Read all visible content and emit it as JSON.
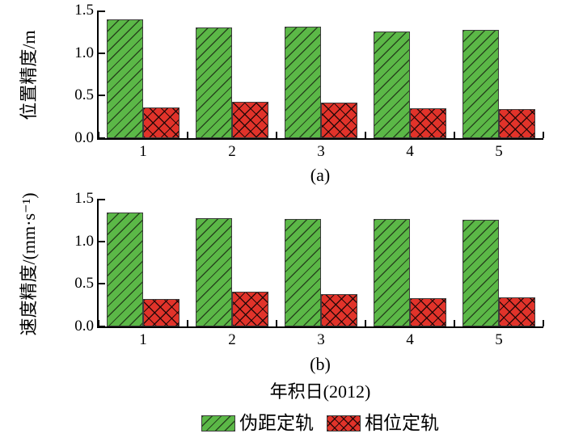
{
  "figure": {
    "x_axis_title": "年积日(2012)",
    "background": "#ffffff",
    "axis_color": "#000000",
    "legend": {
      "position": "bottom-center",
      "items": [
        {
          "label": "伪距定轨",
          "color": "#5bb847",
          "hatch": "diagonal-forward"
        },
        {
          "label": "相位定轨",
          "color": "#e1332a",
          "hatch": "crosshatch"
        }
      ]
    }
  },
  "chart_data": [
    {
      "type": "bar",
      "panel_label": "(a)",
      "xlabel": "年积日(2012)",
      "ylabel": "位置精度/m",
      "categories": [
        "1",
        "2",
        "3",
        "4",
        "5"
      ],
      "ytick_labels": [
        "0.0",
        "0.5",
        "1.0",
        "1.5"
      ],
      "ylim": [
        0,
        1.5
      ],
      "grid": false,
      "legend_position": "figure-bottom",
      "series": [
        {
          "name": "伪距定轨",
          "color": "#5bb847",
          "hatch": "diagonal-forward",
          "values": [
            1.4,
            1.3,
            1.31,
            1.25,
            1.27
          ]
        },
        {
          "name": "相位定轨",
          "color": "#e1332a",
          "hatch": "crosshatch",
          "values": [
            0.36,
            0.43,
            0.42,
            0.35,
            0.34
          ]
        }
      ]
    },
    {
      "type": "bar",
      "panel_label": "(b)",
      "xlabel": "年积日(2012)",
      "ylabel": "速度精度/(mm·s⁻¹)",
      "categories": [
        "1",
        "2",
        "3",
        "4",
        "5"
      ],
      "ytick_labels": [
        "0.0",
        "0.5",
        "1.0",
        "1.5"
      ],
      "ylim": [
        0,
        1.5
      ],
      "grid": false,
      "legend_position": "figure-bottom",
      "series": [
        {
          "name": "伪距定轨",
          "color": "#5bb847",
          "hatch": "diagonal-forward",
          "values": [
            1.34,
            1.27,
            1.26,
            1.26,
            1.25
          ]
        },
        {
          "name": "相位定轨",
          "color": "#e1332a",
          "hatch": "crosshatch",
          "values": [
            0.32,
            0.41,
            0.38,
            0.33,
            0.34
          ]
        }
      ]
    }
  ]
}
